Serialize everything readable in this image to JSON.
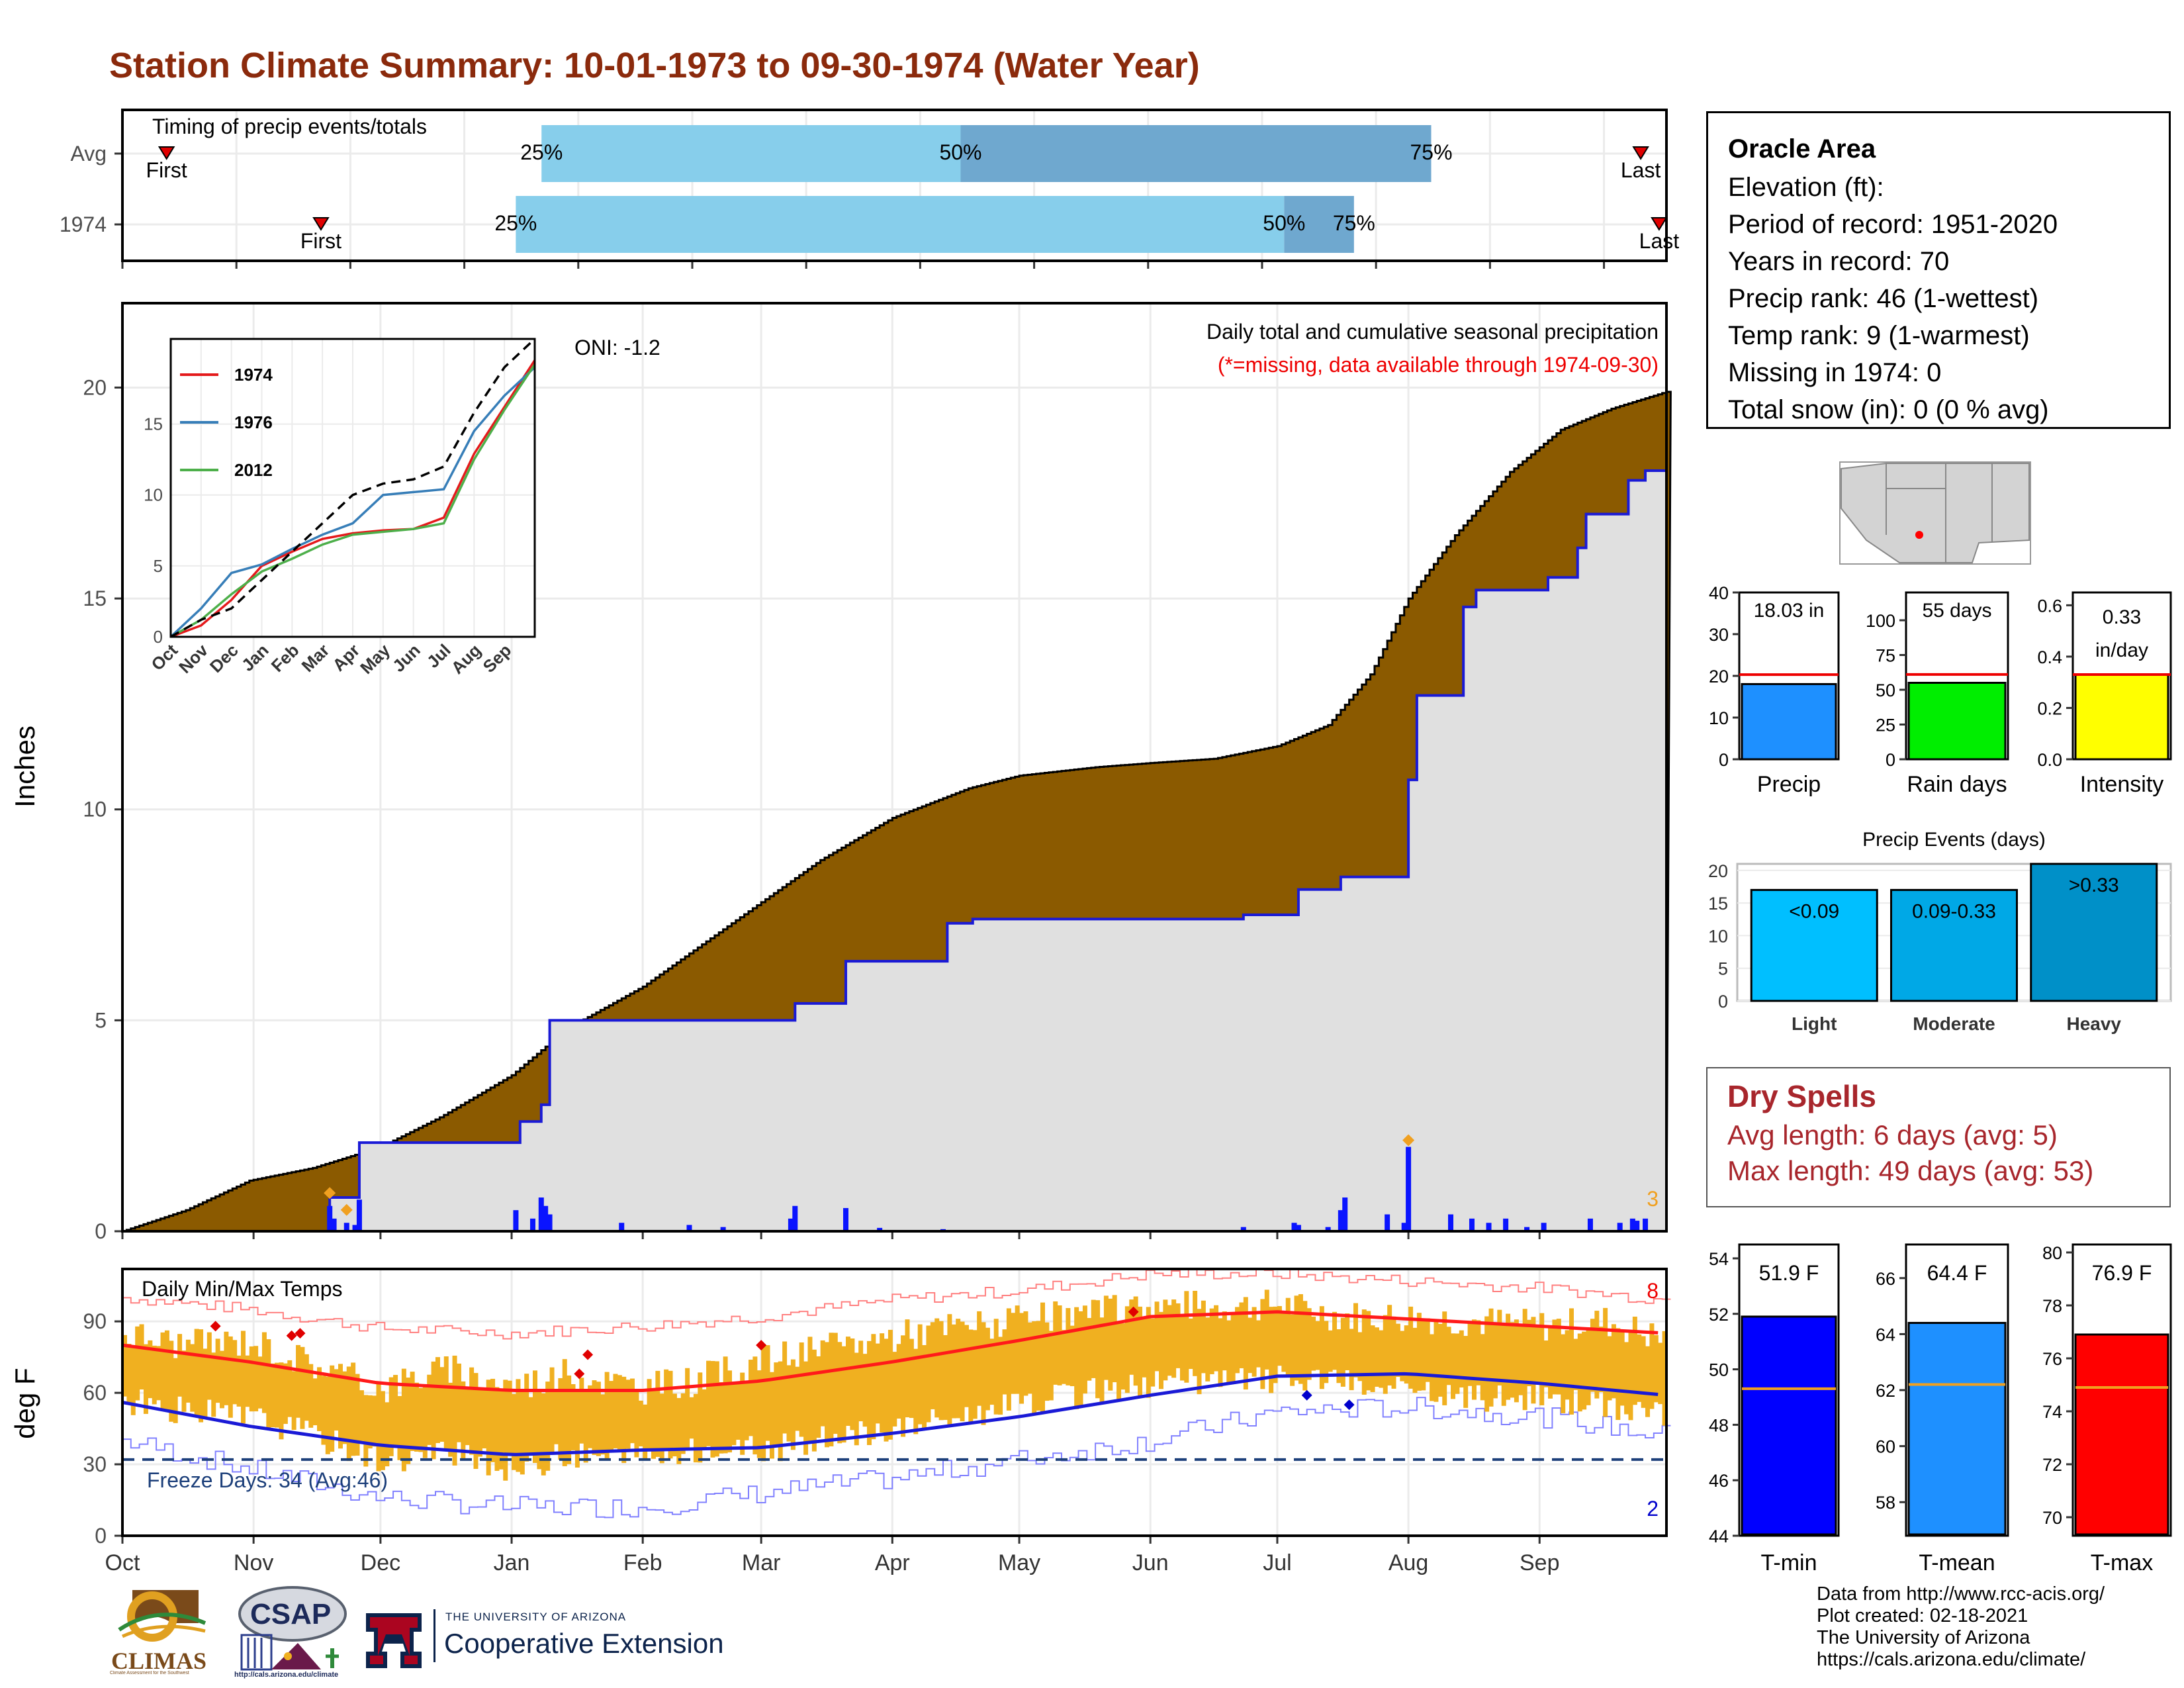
{
  "page": {
    "title": "Station Climate Summary: 10-01-1973 to 09-30-1974 (Water Year)"
  },
  "timing_panel": {
    "label": "Timing of precip events/totals",
    "rows": [
      {
        "name": "Avg",
        "first": "First",
        "last": "Last",
        "first_day": 12,
        "p25_day": 114,
        "p50_day": 228,
        "p75_day": 356,
        "last_day": 413
      },
      {
        "name": "1974",
        "first": "First",
        "last": "Last",
        "first_day": 54,
        "p25_day": 107,
        "p50_day": 316,
        "p75_day": 335,
        "last_day": 418
      }
    ],
    "pct_labels": [
      "25%",
      "50%",
      "75%"
    ]
  },
  "info": {
    "station": "Oracle Area",
    "lines": [
      "Elevation (ft):",
      "Period of record: 1951-2020",
      "Years in record: 70",
      "Precip rank: 46 (1-wettest)",
      "Temp rank: 9 (1-warmest)",
      "Missing in 1974: 0",
      "Total snow (in): 0 (0 % avg)"
    ]
  },
  "dry_spells": {
    "title": "Dry Spells",
    "avg_line": "Avg length: 6 days (avg: 5)",
    "max_line": "Max length: 49 days (avg: 53)"
  },
  "credits": {
    "lines": [
      "Data from http://www.rcc-acis.org/",
      "Plot created: 02-18-2021",
      "The University of Arizona",
      "https://cals.arizona.edu/climate/"
    ]
  },
  "logos": {
    "climas": "CLIMAS",
    "climas_sub": "Climate Assessment for the Southwest",
    "csap": "CSAP",
    "csap_url": "http://cals.arizona.edu/climate",
    "ua_line1": "THE UNIVERSITY OF ARIZONA",
    "ua_line2": "Cooperative Extension",
    "ua_letter": "A"
  },
  "colors": {
    "title": "#8b2a0c",
    "brown_fill": "#8b5a00",
    "grey_fill": "#e0e0e0",
    "blue_line": "#1a1ad6",
    "light_blue_bar": "#87ceeb",
    "mid_blue_bar": "#6fa8cf",
    "temp_range": "#f0b020",
    "tmax_line": "#ff1a1a",
    "tmin_line": "#1a1ad6",
    "dry_spell_text": "#a8262c"
  },
  "chart_data": [
    {
      "id": "precip-main",
      "type": "area",
      "title": "Daily total and cumulative seasonal precipitation",
      "subtitle": "(*=missing, data available through 1974-09-30)",
      "annotation": "ONI: -1.2",
      "ylabel": "Inches",
      "ylim": [
        0,
        22
      ],
      "yticks": [
        0,
        5,
        10,
        15,
        20
      ],
      "month_ticks": [
        "Oct",
        "Nov",
        "Dec",
        "Jan",
        "Feb",
        "Mar",
        "Apr",
        "May",
        "Jun",
        "Jul",
        "Aug",
        "Sep"
      ],
      "corner_count": "3",
      "series": [
        {
          "name": "Average cumulative",
          "x_day": [
            0,
            15,
            30,
            45,
            61,
            75,
            92,
            105,
            123,
            137,
            151,
            165,
            182,
            200,
            212,
            230,
            243,
            258,
            273,
            285,
            295,
            304,
            315,
            328,
            340,
            352,
            365
          ],
          "y": [
            0,
            0.5,
            1.2,
            1.5,
            2.0,
            2.7,
            3.7,
            4.8,
            5.8,
            6.8,
            7.8,
            8.8,
            9.8,
            10.5,
            10.8,
            11.0,
            11.1,
            11.2,
            11.5,
            12.0,
            13.2,
            15.0,
            16.5,
            18.0,
            19.0,
            19.5,
            19.9
          ]
        },
        {
          "name": "1974 cumulative",
          "step_day": [
            0,
            49,
            56,
            94,
            99,
            101,
            159,
            171,
            195,
            201,
            265,
            278,
            288,
            304,
            306,
            317,
            320,
            337,
            344,
            346,
            356,
            360,
            365
          ],
          "y": [
            0,
            0.8,
            2.1,
            2.6,
            3.0,
            5.0,
            5.4,
            6.4,
            7.3,
            7.4,
            7.5,
            8.1,
            8.4,
            10.7,
            12.7,
            14.8,
            15.2,
            15.5,
            16.2,
            17.0,
            17.8,
            18.03,
            18.03
          ]
        },
        {
          "name": "Daily precip",
          "day": [
            49,
            50,
            53,
            55,
            56,
            93,
            97,
            99,
            100,
            101,
            118,
            134,
            142,
            158,
            159,
            171,
            179,
            194,
            265,
            277,
            278,
            285,
            288,
            289,
            299,
            303,
            304,
            314,
            319,
            323,
            327,
            332,
            336,
            347,
            354,
            357,
            358,
            360
          ],
          "value": [
            0.6,
            0.3,
            0.2,
            0.15,
            0.75,
            0.5,
            0.3,
            0.8,
            0.6,
            0.4,
            0.2,
            0.15,
            0.1,
            0.3,
            0.6,
            0.55,
            0.08,
            0.05,
            0.1,
            0.2,
            0.15,
            0.1,
            0.5,
            0.8,
            0.4,
            0.2,
            2.0,
            0.4,
            0.3,
            0.2,
            0.3,
            0.1,
            0.2,
            0.3,
            0.2,
            0.3,
            0.25,
            0.3
          ]
        }
      ]
    },
    {
      "id": "precip-inset",
      "type": "line",
      "xlabels": [
        "Oct",
        "Nov",
        "Dec",
        "Jan",
        "Feb",
        "Mar",
        "Apr",
        "May",
        "Jun",
        "Jul",
        "Aug",
        "Sep"
      ],
      "ylim": [
        0,
        21
      ],
      "yticks": [
        0,
        5,
        10,
        15
      ],
      "legend": "top-left",
      "series": [
        {
          "name": "1974",
          "color": "#e41a1c",
          "y": [
            0,
            0.8,
            2.6,
            5.0,
            6.0,
            6.9,
            7.3,
            7.5,
            7.6,
            8.4,
            12.9,
            16.2,
            19.5
          ]
        },
        {
          "name": "1976",
          "color": "#377eb8",
          "y": [
            0,
            2.0,
            4.5,
            5.1,
            6.2,
            7.2,
            8.0,
            10.0,
            10.2,
            10.4,
            14.5,
            17.0,
            19.0
          ]
        },
        {
          "name": "2012",
          "color": "#4daf4a",
          "y": [
            0,
            1.2,
            3.0,
            4.6,
            5.5,
            6.5,
            7.2,
            7.4,
            7.6,
            8.0,
            12.5,
            16.0,
            19.2
          ]
        },
        {
          "name": "Average",
          "color": "#000000",
          "dashed": true,
          "y": [
            0,
            1.2,
            2.0,
            4.0,
            6.0,
            8.0,
            10.0,
            10.8,
            11.1,
            12.0,
            15.8,
            19.0,
            21.0
          ]
        }
      ]
    },
    {
      "id": "temps",
      "type": "line",
      "title": "Daily Min/Max Temps",
      "ylabel": "deg F",
      "ylim": [
        0,
        112
      ],
      "yticks": [
        0,
        30,
        60,
        90
      ],
      "freeze_line": 32,
      "freeze_text": "Freeze Days: 34 (Avg:46)",
      "count_high": "8",
      "count_low": "2",
      "month_ticks": [
        "Oct",
        "Nov",
        "Dec",
        "Jan",
        "Feb",
        "Mar",
        "Apr",
        "May",
        "Jun",
        "Jul",
        "Aug",
        "Sep"
      ],
      "avg_tmax": {
        "x_day": [
          0,
          30,
          61,
          92,
          123,
          151,
          182,
          212,
          243,
          273,
          304,
          335,
          365
        ],
        "y": [
          80,
          73,
          64,
          61,
          61,
          65,
          73,
          82,
          92,
          94,
          91,
          88,
          85
        ]
      },
      "avg_tmin": {
        "x_day": [
          0,
          30,
          61,
          92,
          123,
          151,
          182,
          212,
          243,
          273,
          304,
          335,
          365
        ],
        "y": [
          56,
          46,
          38,
          34,
          36,
          37,
          43,
          50,
          59,
          67,
          68,
          64,
          59
        ]
      },
      "record_high": {
        "x_day": [
          0,
          30,
          61,
          92,
          123,
          151,
          182,
          212,
          243,
          273,
          304,
          335,
          365
        ],
        "y": [
          100,
          95,
          87,
          85,
          88,
          92,
          99,
          103,
          110,
          110,
          107,
          104,
          99
        ]
      },
      "record_low": {
        "x_day": [
          0,
          30,
          61,
          92,
          123,
          151,
          182,
          212,
          243,
          273,
          304,
          335,
          365
        ],
        "y": [
          40,
          28,
          16,
          12,
          12,
          18,
          24,
          32,
          40,
          52,
          54,
          50,
          42
        ]
      },
      "obs_tmax": {
        "x_day": [
          0,
          15,
          30,
          45,
          61,
          75,
          92,
          105,
          123,
          137,
          151,
          165,
          182,
          197,
          212,
          228,
          243,
          258,
          273,
          288,
          304,
          320,
          335,
          350,
          365
        ],
        "y": [
          85,
          80,
          82,
          72,
          62,
          70,
          63,
          68,
          62,
          66,
          74,
          78,
          84,
          88,
          90,
          93,
          97,
          96,
          97,
          92,
          92,
          90,
          88,
          90,
          82
        ]
      },
      "obs_tmin": {
        "x_day": [
          0,
          15,
          30,
          45,
          61,
          75,
          92,
          105,
          123,
          137,
          151,
          165,
          182,
          197,
          212,
          228,
          243,
          258,
          273,
          288,
          304,
          320,
          335,
          350,
          365
        ],
        "y": [
          57,
          52,
          50,
          42,
          32,
          35,
          28,
          34,
          33,
          36,
          36,
          40,
          45,
          50,
          55,
          60,
          64,
          65,
          66,
          64,
          60,
          58,
          58,
          55,
          52
        ]
      }
    },
    {
      "id": "precip-bars",
      "type": "bar",
      "categories": [
        "Precip",
        "Rain days",
        "Intensity"
      ],
      "values": [
        18.03,
        55,
        0.33
      ],
      "averages": [
        20.3,
        61,
        0.33
      ],
      "labels": [
        "18.03 in",
        "55 days",
        "0.33 in/day"
      ],
      "ylims": [
        [
          0,
          40
        ],
        [
          0,
          120
        ],
        [
          0,
          0.65
        ]
      ],
      "yticks": [
        [
          0,
          10,
          20,
          30,
          40
        ],
        [
          0,
          25,
          50,
          75,
          100
        ],
        [
          0.0,
          0.2,
          0.4,
          0.6
        ]
      ],
      "colors": [
        "#1e90ff",
        "#00ee00",
        "#ffff00"
      ]
    },
    {
      "id": "precip-events",
      "type": "bar",
      "title": "Precip Events (days)",
      "categories": [
        "Light",
        "Moderate",
        "Heavy"
      ],
      "bar_labels": [
        "<0.09",
        "0.09-0.33",
        ">0.33"
      ],
      "values": [
        17,
        17,
        21
      ],
      "ylim": [
        0,
        21
      ],
      "yticks": [
        0,
        5,
        10,
        15,
        20
      ],
      "colors": [
        "#00bfff",
        "#00a8e6",
        "#0090c8"
      ]
    },
    {
      "id": "temp-bars",
      "type": "bar",
      "categories": [
        "T-min",
        "T-mean",
        "T-max"
      ],
      "values": [
        51.9,
        64.4,
        76.9
      ],
      "averages": [
        49.3,
        62.2,
        74.9
      ],
      "labels": [
        "51.9 F",
        "64.4 F",
        "76.9 F"
      ],
      "ylims": [
        [
          44,
          54.5
        ],
        [
          56.8,
          67.2
        ],
        [
          69.3,
          80.3
        ]
      ],
      "yticks": [
        [
          44,
          46,
          48,
          50,
          52,
          54
        ],
        [
          58,
          60,
          62,
          64,
          66
        ],
        [
          70,
          72,
          74,
          76,
          78,
          80
        ]
      ],
      "colors": [
        "#0000ff",
        "#1e90ff",
        "#ff0000"
      ]
    }
  ]
}
